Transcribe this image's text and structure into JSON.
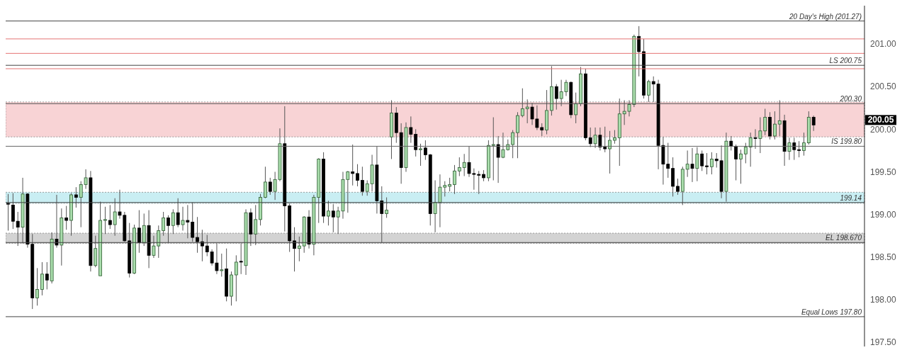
{
  "chart_data": {
    "type": "candlestick",
    "categories": [
      null,
      null,
      null,
      null,
      null,
      null,
      null,
      null,
      null,
      null,
      null,
      null,
      null,
      null,
      null,
      null,
      null,
      null,
      null,
      null,
      null,
      null,
      null,
      null,
      null,
      null,
      null,
      null,
      null,
      null,
      null,
      null,
      null,
      null,
      null,
      null,
      null,
      null,
      null,
      null,
      null,
      null,
      null,
      null,
      null,
      null,
      null,
      null,
      null,
      null,
      null,
      null,
      null,
      null,
      null,
      null,
      null,
      null,
      null,
      null,
      null,
      null,
      null,
      null,
      null,
      null,
      null,
      null,
      null,
      null,
      null,
      null,
      null,
      null,
      null,
      null,
      null,
      null,
      null,
      null,
      null,
      null,
      null,
      null,
      null,
      null,
      null,
      null,
      null,
      null,
      null,
      null,
      null,
      null,
      null,
      null,
      null,
      null,
      null,
      null,
      null,
      null,
      null,
      null,
      null,
      null,
      null,
      null,
      null,
      null,
      null,
      null,
      null,
      null,
      null,
      null,
      null,
      null,
      null,
      null,
      null,
      null,
      null,
      null,
      null,
      null,
      null,
      null,
      null,
      null,
      null,
      null,
      null,
      null,
      null,
      null,
      null,
      null,
      null,
      null,
      null,
      null,
      null,
      null,
      null,
      null,
      null,
      null,
      null,
      null,
      null,
      null,
      null,
      null,
      null,
      null,
      null,
      null,
      null,
      null,
      null,
      null,
      null,
      null,
      null,
      null,
      null,
      null,
      null,
      null,
      null,
      null,
      null,
      null,
      null,
      null,
      null
    ],
    "ohlc": [
      [
        199.13,
        199.24,
        198.81,
        199.12
      ],
      [
        199.11,
        199.25,
        198.83,
        198.92
      ],
      [
        198.92,
        199.03,
        198.63,
        198.85
      ],
      [
        198.85,
        199.43,
        198.66,
        199.24
      ],
      [
        199.24,
        199.25,
        198.61,
        198.65
      ],
      [
        198.65,
        198.77,
        197.89,
        198.02
      ],
      [
        198.02,
        198.37,
        197.93,
        198.12
      ],
      [
        198.12,
        198.44,
        198.05,
        198.3
      ],
      [
        198.3,
        198.44,
        198.12,
        198.23
      ],
      [
        198.22,
        198.79,
        198.19,
        198.71
      ],
      [
        198.71,
        199.23,
        198.61,
        198.64
      ],
      [
        198.64,
        199.07,
        198.4,
        198.96
      ],
      [
        198.96,
        199.1,
        198.82,
        198.93
      ],
      [
        198.93,
        199.25,
        198.75,
        199.23
      ],
      [
        199.23,
        199.32,
        199.08,
        199.2
      ],
      [
        199.2,
        199.39,
        198.85,
        199.35
      ],
      [
        199.35,
        199.53,
        199.3,
        199.43
      ],
      [
        199.43,
        199.51,
        198.33,
        198.4
      ],
      [
        198.4,
        198.75,
        198.38,
        198.6
      ],
      [
        198.28,
        199.15,
        198.28,
        198.93
      ],
      [
        198.93,
        199.09,
        198.77,
        198.94
      ],
      [
        198.93,
        199.11,
        198.83,
        198.88
      ],
      [
        198.88,
        199.19,
        198.75,
        199.03
      ],
      [
        199.03,
        199.29,
        198.95,
        198.99
      ],
      [
        198.99,
        199.03,
        198.68,
        198.69
      ],
      [
        198.69,
        198.9,
        198.26,
        198.31
      ],
      [
        198.31,
        198.88,
        198.3,
        198.84
      ],
      [
        198.84,
        199.05,
        198.55,
        198.67
      ],
      [
        198.67,
        199.01,
        198.63,
        198.87
      ],
      [
        198.87,
        199.05,
        198.37,
        198.52
      ],
      [
        198.52,
        198.75,
        198.49,
        198.63
      ],
      [
        198.63,
        198.87,
        198.49,
        198.81
      ],
      [
        198.81,
        199.03,
        198.75,
        198.96
      ],
      [
        198.96,
        198.99,
        198.67,
        198.87
      ],
      [
        198.87,
        199.06,
        198.77,
        199.02
      ],
      [
        199.02,
        199.19,
        198.85,
        198.88
      ],
      [
        198.88,
        199.09,
        198.81,
        198.93
      ],
      [
        198.93,
        199.11,
        198.72,
        198.91
      ],
      [
        198.91,
        199.14,
        198.68,
        198.73
      ],
      [
        198.73,
        198.97,
        198.55,
        198.68
      ],
      [
        198.68,
        198.82,
        198.45,
        198.63
      ],
      [
        198.63,
        198.76,
        198.51,
        198.56
      ],
      [
        198.56,
        198.59,
        198.4,
        198.43
      ],
      [
        198.43,
        198.66,
        198.3,
        198.34
      ],
      [
        198.34,
        198.54,
        198.27,
        198.35
      ],
      [
        198.36,
        198.6,
        197.98,
        198.04
      ],
      [
        198.04,
        198.33,
        197.93,
        198.29
      ],
      [
        198.29,
        198.52,
        197.98,
        198.44
      ],
      [
        198.45,
        198.66,
        198.3,
        198.44
      ],
      [
        198.4,
        199.06,
        198.29,
        199.02
      ],
      [
        199.02,
        199.07,
        198.63,
        198.77
      ],
      [
        198.77,
        199.11,
        198.64,
        198.94
      ],
      [
        198.94,
        199.24,
        198.87,
        199.2
      ],
      [
        199.2,
        199.56,
        199.19,
        199.38
      ],
      [
        199.38,
        199.43,
        199.23,
        199.27
      ],
      [
        199.27,
        199.5,
        199.17,
        199.41
      ],
      [
        199.41,
        200.01,
        199.39,
        199.83
      ],
      [
        199.83,
        200.27,
        198.8,
        199.1
      ],
      [
        199.1,
        199.13,
        198.56,
        198.69
      ],
      [
        198.69,
        198.85,
        198.33,
        198.6
      ],
      [
        198.6,
        198.74,
        198.45,
        198.63
      ],
      [
        198.63,
        198.98,
        198.55,
        198.97
      ],
      [
        198.97,
        199.05,
        198.6,
        198.65
      ],
      [
        198.65,
        199.23,
        198.52,
        199.2
      ],
      [
        199.2,
        199.66,
        198.9,
        199.65
      ],
      [
        199.65,
        199.73,
        198.9,
        198.98
      ],
      [
        198.98,
        199.16,
        198.87,
        199.04
      ],
      [
        199.04,
        199.12,
        198.79,
        198.97
      ],
      [
        198.97,
        199.09,
        198.77,
        199.04
      ],
      [
        199.04,
        199.5,
        198.95,
        199.41
      ],
      [
        199.41,
        199.51,
        199.02,
        199.5
      ],
      [
        199.5,
        199.82,
        199.34,
        199.48
      ],
      [
        199.48,
        199.59,
        199.33,
        199.4
      ],
      [
        199.4,
        199.56,
        199.22,
        199.27
      ],
      [
        199.27,
        199.4,
        199.22,
        199.36
      ],
      [
        199.36,
        199.7,
        199.27,
        199.58
      ],
      [
        199.58,
        199.8,
        199.01,
        199.16
      ],
      [
        199.16,
        199.33,
        198.67,
        199.01
      ],
      [
        199.01,
        199.2,
        198.96,
        199.05
      ],
      [
        199.91,
        200.34,
        199.65,
        200.19
      ],
      [
        200.19,
        200.26,
        199.84,
        199.96
      ],
      [
        199.96,
        200.07,
        199.36,
        199.55
      ],
      [
        199.55,
        200.08,
        199.5,
        200.02
      ],
      [
        200.02,
        200.15,
        199.84,
        199.94
      ],
      [
        199.94,
        200.0,
        199.68,
        199.76
      ],
      [
        199.76,
        199.83,
        199.57,
        199.77
      ],
      [
        199.78,
        199.87,
        199.64,
        199.7
      ],
      [
        199.7,
        199.71,
        198.87,
        199.01
      ],
      [
        199.01,
        199.4,
        198.79,
        199.14
      ],
      [
        199.14,
        199.47,
        198.85,
        199.32
      ],
      [
        199.32,
        199.39,
        199.21,
        199.34
      ],
      [
        199.33,
        199.43,
        199.27,
        199.35
      ],
      [
        199.35,
        199.58,
        199.24,
        199.51
      ],
      [
        199.51,
        199.67,
        199.45,
        199.55
      ],
      [
        199.55,
        199.71,
        199.45,
        199.61
      ],
      [
        199.61,
        199.8,
        199.44,
        199.48
      ],
      [
        199.48,
        199.54,
        199.29,
        199.47
      ],
      [
        199.47,
        199.51,
        199.24,
        199.46
      ],
      [
        199.47,
        199.52,
        199.39,
        199.43
      ],
      [
        199.43,
        199.87,
        199.39,
        199.81
      ],
      [
        199.81,
        200.14,
        199.4,
        199.82
      ],
      [
        199.82,
        199.92,
        199.37,
        199.67
      ],
      [
        199.67,
        199.96,
        199.66,
        199.76
      ],
      [
        199.76,
        199.88,
        199.75,
        199.82
      ],
      [
        199.82,
        199.99,
        199.66,
        199.96
      ],
      [
        199.96,
        200.2,
        199.66,
        200.16
      ],
      [
        200.16,
        200.48,
        200.14,
        200.24
      ],
      [
        200.24,
        200.35,
        200.07,
        200.26
      ],
      [
        200.26,
        200.31,
        200.05,
        200.12
      ],
      [
        200.12,
        200.28,
        199.99,
        200.02
      ],
      [
        200.02,
        200.07,
        199.92,
        199.99
      ],
      [
        199.99,
        200.46,
        199.94,
        200.22
      ],
      [
        200.22,
        200.74,
        200.16,
        200.5
      ],
      [
        200.5,
        200.53,
        200.23,
        200.36
      ],
      [
        200.36,
        200.58,
        200.27,
        200.44
      ],
      [
        200.44,
        200.58,
        200.39,
        200.55
      ],
      [
        200.55,
        200.56,
        200.13,
        200.17
      ],
      [
        200.17,
        200.43,
        200.07,
        200.3
      ],
      [
        200.3,
        200.73,
        200.27,
        200.65
      ],
      [
        200.65,
        200.71,
        199.87,
        199.9
      ],
      [
        199.9,
        200.02,
        199.79,
        199.83
      ],
      [
        199.83,
        200.02,
        199.78,
        199.93
      ],
      [
        199.93,
        200.02,
        199.75,
        199.79
      ],
      [
        199.79,
        200.03,
        199.73,
        199.77
      ],
      [
        199.77,
        199.98,
        199.48,
        199.87
      ],
      [
        199.87,
        199.99,
        199.83,
        199.9
      ],
      [
        199.9,
        200.36,
        199.57,
        200.18
      ],
      [
        200.18,
        200.34,
        200.05,
        200.21
      ],
      [
        200.21,
        200.34,
        200.15,
        200.29
      ],
      [
        200.29,
        201.11,
        200.26,
        201.09
      ],
      [
        201.09,
        201.21,
        200.62,
        200.91
      ],
      [
        200.91,
        201.06,
        200.36,
        200.4
      ],
      [
        200.4,
        200.58,
        200.32,
        200.56
      ],
      [
        200.56,
        200.62,
        200.32,
        200.53
      ],
      [
        200.53,
        200.58,
        199.53,
        199.81
      ],
      [
        199.81,
        199.91,
        199.35,
        199.59
      ],
      [
        199.59,
        199.84,
        199.43,
        199.54
      ],
      [
        199.54,
        199.67,
        199.21,
        199.33
      ],
      [
        199.33,
        199.42,
        199.23,
        199.27
      ],
      [
        199.27,
        199.56,
        199.11,
        199.53
      ],
      [
        199.53,
        199.75,
        199.44,
        199.59
      ],
      [
        199.59,
        199.78,
        199.38,
        199.54
      ],
      [
        199.54,
        199.79,
        199.39,
        199.71
      ],
      [
        199.71,
        199.75,
        199.51,
        199.57
      ],
      [
        199.57,
        199.72,
        199.47,
        199.56
      ],
      [
        199.56,
        199.73,
        199.47,
        199.65
      ],
      [
        199.65,
        199.72,
        199.55,
        199.63
      ],
      [
        199.63,
        199.81,
        199.19,
        199.27
      ],
      [
        199.27,
        199.96,
        199.15,
        199.86
      ],
      [
        199.86,
        199.92,
        199.75,
        199.8
      ],
      [
        199.8,
        199.82,
        199.4,
        199.65
      ],
      [
        199.65,
        199.76,
        199.36,
        199.71
      ],
      [
        199.71,
        199.84,
        199.6,
        199.79
      ],
      [
        199.79,
        199.96,
        199.56,
        199.9
      ],
      [
        199.9,
        200.0,
        199.77,
        199.89
      ],
      [
        199.89,
        200.14,
        199.72,
        199.98
      ],
      [
        199.98,
        200.24,
        199.93,
        200.14
      ],
      [
        200.14,
        200.2,
        199.88,
        199.92
      ],
      [
        199.92,
        200.21,
        199.88,
        200.06
      ],
      [
        200.06,
        200.34,
        199.92,
        200.1
      ],
      [
        200.1,
        200.17,
        199.57,
        199.74
      ],
      [
        199.74,
        199.9,
        199.64,
        199.84
      ],
      [
        199.84,
        199.9,
        199.64,
        199.76
      ],
      [
        199.76,
        199.86,
        199.67,
        199.75
      ],
      [
        199.75,
        199.96,
        199.69,
        199.84
      ],
      [
        199.84,
        200.21,
        199.82,
        200.14
      ],
      [
        200.14,
        200.16,
        199.98,
        200.05
      ],
      null,
      null,
      null,
      null,
      null,
      null,
      null,
      null,
      null,
      null
    ],
    "ylim": [
      197.45,
      201.45
    ],
    "yticks": [
      {
        "value": 197.5,
        "label": "197.50"
      },
      {
        "value": 198,
        "label": "198.00"
      },
      {
        "value": 198.5,
        "label": "198.50"
      },
      {
        "value": 199,
        "label": "199.00"
      },
      {
        "value": 199.5,
        "label": "199.50"
      },
      {
        "value": 200,
        "label": "200.00"
      },
      {
        "value": 200.5,
        "label": "200.50"
      },
      {
        "value": 201,
        "label": "201.00"
      }
    ],
    "bands": [
      {
        "axis": "y",
        "from": 199.91,
        "to": 200.32,
        "color": "#f8d3d5"
      },
      {
        "axis": "y",
        "from": 199.13,
        "to": 199.26,
        "color": "#c9eef3"
      },
      {
        "axis": "y",
        "from": 198.66,
        "to": 198.78,
        "color": "#d3d3d3"
      }
    ],
    "ref_lines": [
      {
        "axis": "y",
        "value": 201.27,
        "label": "20 Day's High (201.27)",
        "color": "#444444"
      },
      {
        "axis": "y",
        "value": 201.06,
        "color": "#e57373"
      },
      {
        "axis": "y",
        "value": 200.89,
        "color": "#e57373"
      },
      {
        "axis": "y",
        "value": 200.71,
        "color": "#e57373"
      },
      {
        "axis": "y",
        "value": 200.75,
        "label": "LS 200.75",
        "color": "#444444"
      },
      {
        "axis": "y",
        "value": 200.3,
        "label": "200.30",
        "color": "#555555"
      },
      {
        "axis": "y",
        "value": 199.8,
        "label": "IS 199.80",
        "color": "#666666"
      },
      {
        "axis": "y",
        "value": 199.14,
        "label": "199.14",
        "color": "#444444"
      },
      {
        "axis": "y",
        "value": 198.67,
        "label": "EL 198.670",
        "color": "#444444"
      },
      {
        "axis": "y",
        "value": 197.8,
        "label": "Equal Lows 197.80",
        "color": "#444444"
      }
    ],
    "annotations": [
      "200.05"
    ]
  }
}
